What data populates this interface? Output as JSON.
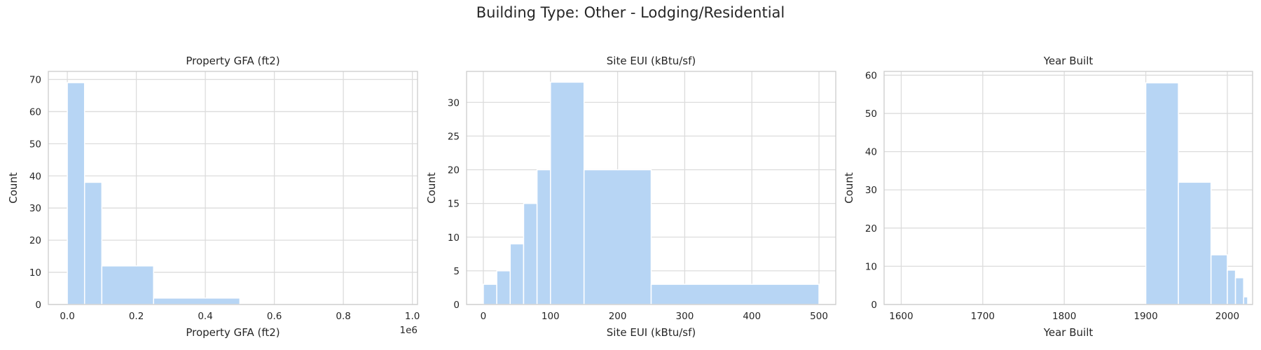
{
  "figure": {
    "suptitle": "Building Type: Other - Lodging/Residential",
    "bar_color": "#b7d5f4",
    "grid_color": "#dcdcdc",
    "frame_color": "#cccccc"
  },
  "chart_data": [
    {
      "type": "histogram",
      "title": "Property GFA (ft2)",
      "xlabel": "Property GFA (ft2)",
      "ylabel": "Count",
      "x_offset_label": "1e6",
      "xlim": [
        -0.055,
        1.015
      ],
      "ylim": [
        0,
        72.5
      ],
      "xticks": [
        0,
        0.2,
        0.4,
        0.6,
        0.8,
        1.0
      ],
      "xtick_labels": [
        "0.0",
        "0.2",
        "0.4",
        "0.6",
        "0.8",
        "1.0"
      ],
      "yticks": [
        0,
        10,
        20,
        30,
        40,
        50,
        60,
        70
      ],
      "bins": [
        {
          "x0": 0.0,
          "x1": 0.05,
          "count": 69
        },
        {
          "x0": 0.05,
          "x1": 0.1,
          "count": 38
        },
        {
          "x0": 0.1,
          "x1": 0.25,
          "count": 12
        },
        {
          "x0": 0.25,
          "x1": 0.5,
          "count": 2
        },
        {
          "x0": 0.5,
          "x1": 1.0,
          "count": 0
        }
      ]
    },
    {
      "type": "histogram",
      "title": "Site EUI (kBtu/sf)",
      "xlabel": "Site EUI (kBtu/sf)",
      "ylabel": "Count",
      "x_offset_label": "",
      "xlim": [
        -25,
        525
      ],
      "ylim": [
        0,
        34.6
      ],
      "xticks": [
        0,
        100,
        200,
        300,
        400,
        500
      ],
      "xtick_labels": [
        "0",
        "100",
        "200",
        "300",
        "400",
        "500"
      ],
      "yticks": [
        0,
        5,
        10,
        15,
        20,
        25,
        30
      ],
      "bins": [
        {
          "x0": 0,
          "x1": 20,
          "count": 3
        },
        {
          "x0": 20,
          "x1": 40,
          "count": 5
        },
        {
          "x0": 40,
          "x1": 60,
          "count": 9
        },
        {
          "x0": 60,
          "x1": 80,
          "count": 15
        },
        {
          "x0": 80,
          "x1": 100,
          "count": 20
        },
        {
          "x0": 100,
          "x1": 150,
          "count": 33
        },
        {
          "x0": 150,
          "x1": 250,
          "count": 20
        },
        {
          "x0": 250,
          "x1": 500,
          "count": 3
        }
      ]
    },
    {
      "type": "histogram",
      "title": "Year Built",
      "xlabel": "Year Built",
      "ylabel": "Count",
      "x_offset_label": "",
      "xlim": [
        1579,
        2031
      ],
      "ylim": [
        0,
        61
      ],
      "xticks": [
        1600,
        1700,
        1800,
        1900,
        2000
      ],
      "xtick_labels": [
        "1600",
        "1700",
        "1800",
        "1900",
        "2000"
      ],
      "yticks": [
        0,
        10,
        20,
        30,
        40,
        50,
        60
      ],
      "bins": [
        {
          "x0": 1600,
          "x1": 1900,
          "count": 0
        },
        {
          "x0": 1900,
          "x1": 1940,
          "count": 58
        },
        {
          "x0": 1940,
          "x1": 1980,
          "count": 32
        },
        {
          "x0": 1980,
          "x1": 2000,
          "count": 13
        },
        {
          "x0": 2000,
          "x1": 2010,
          "count": 9
        },
        {
          "x0": 2010,
          "x1": 2020,
          "count": 7
        },
        {
          "x0": 2020,
          "x1": 2025,
          "count": 2
        }
      ]
    }
  ]
}
